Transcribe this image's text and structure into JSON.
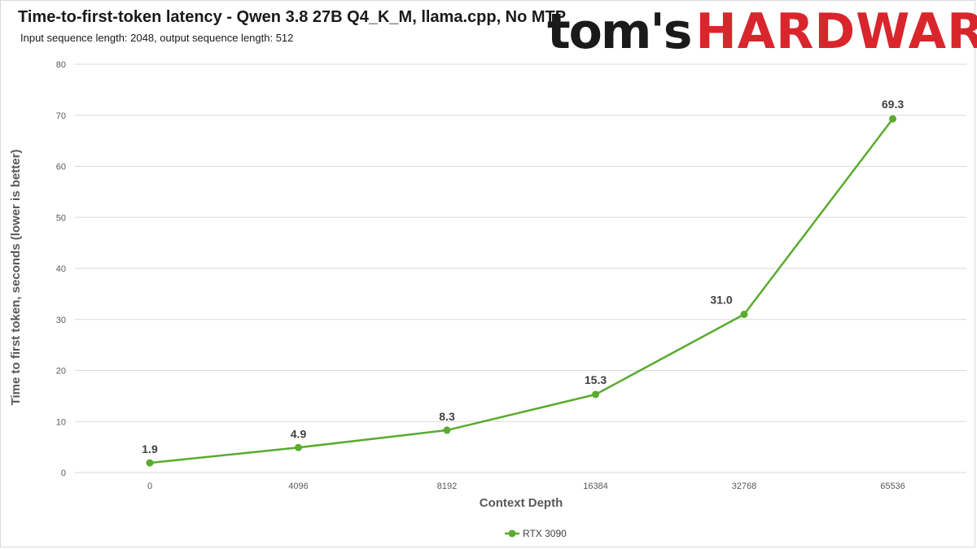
{
  "header": {
    "title": "Time-to-first-token latency - Qwen 3.8 27B Q4_K_M, llama.cpp, No MTP",
    "subtitle": "Input sequence length: 2048, output sequence length: 512",
    "logo_part_a": "tom's",
    "logo_part_b": "HARDWARE"
  },
  "colors": {
    "series": "#5aab2e",
    "grid": "#d9d9d9",
    "logo_red": "#d8262c"
  },
  "chart_data": {
    "type": "line",
    "categories": [
      "0",
      "4096",
      "8192",
      "16384",
      "32768",
      "65536"
    ],
    "series": [
      {
        "name": "RTX 3090",
        "values": [
          1.9,
          4.9,
          8.3,
          15.3,
          31.0,
          69.3
        ]
      }
    ],
    "data_labels": [
      "1.9",
      "4.9",
      "8.3",
      "15.3",
      "31.0",
      "69.3"
    ],
    "xlabel": "Context Depth",
    "ylabel": "Time to first token, seconds (lower is better)",
    "ylim": [
      0,
      80
    ],
    "yticks": [
      0,
      10,
      20,
      30,
      40,
      50,
      60,
      70,
      80
    ],
    "grid": true,
    "legend": "bottom-center"
  }
}
